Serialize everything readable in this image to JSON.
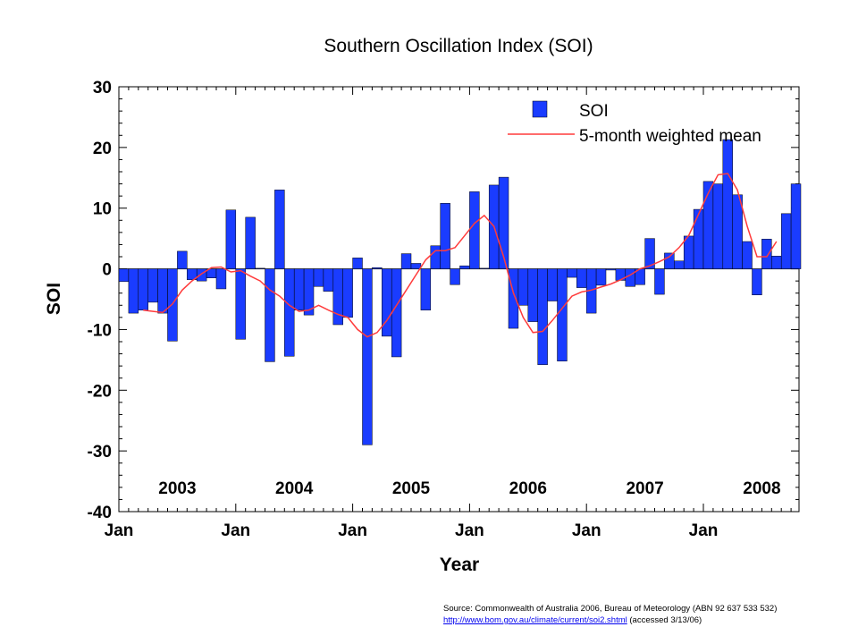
{
  "chart_data": {
    "type": "bar",
    "title": "Southern Oscillation Index (SOI)",
    "xlabel": "Year",
    "ylabel": "SOI",
    "ylim": [
      -40,
      30
    ],
    "yticks": [
      "30",
      "20",
      "10",
      "0",
      "-10",
      "-20",
      "-30",
      "-40"
    ],
    "year_labels": [
      "2003",
      "2004",
      "2005",
      "2006",
      "2007",
      "2008"
    ],
    "month_label": "Jan",
    "grid": false,
    "legend_position": "top-right",
    "x_start": "2003-01",
    "series": [
      {
        "name": "SOI",
        "kind": "bar",
        "color": "#1a3cff",
        "values": [
          -2.1,
          -7.3,
          -6.8,
          -5.5,
          -7.3,
          -11.9,
          2.9,
          -1.8,
          -2.0,
          -1.5,
          -3.3,
          9.7,
          -11.6,
          8.5,
          0.1,
          -15.3,
          13.0,
          -14.4,
          -6.8,
          -7.6,
          -2.9,
          -3.7,
          -9.2,
          -8.0,
          1.8,
          -29.0,
          0.2,
          -11.1,
          -14.5,
          2.5,
          0.9,
          -6.8,
          3.8,
          10.8,
          -2.6,
          0.5,
          12.7,
          0.1,
          13.8,
          15.1,
          -9.8,
          -6.0,
          -8.7,
          -15.8,
          -5.3,
          -15.2,
          -1.4,
          -3.1,
          -7.3,
          -2.7,
          -0.2,
          -1.9,
          -2.9,
          -2.6,
          5.0,
          -4.2,
          2.6,
          1.3,
          5.4,
          9.8,
          14.4,
          14.0,
          21.3,
          12.2,
          4.5,
          -4.3,
          4.9,
          2.1,
          9.1,
          14.0
        ]
      },
      {
        "name": "5-month weighted mean",
        "kind": "line",
        "color": "#ff3b3b",
        "values": [
          null,
          null,
          -6.8,
          -7.0,
          -7.2,
          -5.8,
          -3.5,
          -2.0,
          -0.8,
          0.2,
          0.3,
          -0.5,
          -0.3,
          -1.2,
          -2.0,
          -3.5,
          -4.5,
          -6.0,
          -7.0,
          -6.8,
          -6.0,
          -6.8,
          -7.5,
          -8.0,
          -10.0,
          -11.2,
          -10.5,
          -8.5,
          -6.0,
          -3.5,
          -1.0,
          1.5,
          3.0,
          3.0,
          3.5,
          5.5,
          7.5,
          8.8,
          7.0,
          2.0,
          -4.0,
          -8.0,
          -10.5,
          -10.3,
          -8.5,
          -6.5,
          -4.5,
          -3.8,
          -3.5,
          -3.0,
          -2.5,
          -1.8,
          -1.0,
          0.0,
          0.5,
          1.2,
          2.0,
          3.5,
          5.5,
          9.0,
          12.5,
          15.5,
          15.7,
          13.0,
          7.0,
          2.0,
          2.0,
          4.5,
          null,
          null
        ]
      }
    ]
  },
  "source": {
    "line1": "Source: Commonwealth of Australia 2006, Bureau of Meteorology (ABN 92 637 533 532)",
    "link": "http://www.bom.gov.au/climate/current/soi2.shtml",
    "line2_suffix": " (accessed 3/13/06)"
  }
}
